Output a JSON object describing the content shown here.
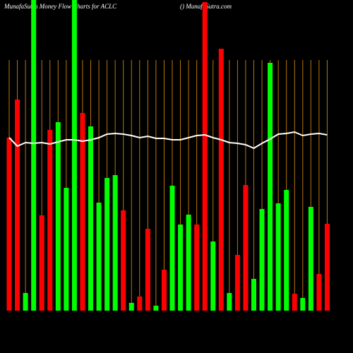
{
  "chart_data": {
    "type": "bar",
    "title": "MunafaSutra  Money Flow  Charts for ACLC",
    "subtitle": "() MunafaSutra.com",
    "ylim": [
      0,
      440
    ],
    "grid": true,
    "grid_color": "#b8760b",
    "values": [
      245,
      299,
      25,
      440,
      135,
      256,
      267,
      174,
      440,
      280,
      261,
      153,
      188,
      192,
      142,
      11,
      20,
      116,
      7,
      58,
      177,
      122,
      136,
      122,
      437,
      98,
      371,
      25,
      79,
      178,
      45,
      144,
      351,
      152,
      171,
      24,
      18,
      147,
      52,
      123
    ],
    "colors": [
      "#ff0000",
      "#ff0000",
      "#00ff00",
      "#00ff00",
      "#ff0000",
      "#ff0000",
      "#00ff00",
      "#00ff00",
      "#00ff00",
      "#ff0000",
      "#00ff00",
      "#00ff00",
      "#00ff00",
      "#00ff00",
      "#ff0000",
      "#00ff00",
      "#ff0000",
      "#ff0000",
      "#00ff00",
      "#ff0000",
      "#00ff00",
      "#00ff00",
      "#00ff00",
      "#ff0000",
      "#ff0000",
      "#00ff00",
      "#ff0000",
      "#00ff00",
      "#ff0000",
      "#ff0000",
      "#00ff00",
      "#00ff00",
      "#00ff00",
      "#00ff00",
      "#00ff00",
      "#ff0000",
      "#00ff00",
      "#00ff00",
      "#ff0000",
      "#ff0000"
    ],
    "line": {
      "color": "#ffffff",
      "values": [
        245,
        233,
        238,
        237,
        238,
        236,
        239,
        242,
        242,
        240,
        242,
        245,
        250,
        251,
        250,
        248,
        245,
        247,
        244,
        244,
        242,
        242,
        245,
        248,
        249,
        245,
        242,
        238,
        237,
        235,
        230,
        237,
        243,
        250,
        251,
        253,
        248,
        250,
        251,
        249
      ]
    }
  }
}
